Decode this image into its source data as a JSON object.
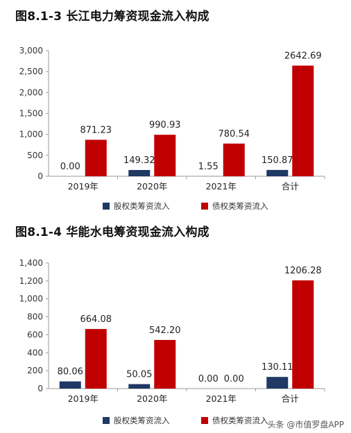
{
  "watermark": "头条 @市值罗盘APP",
  "chart_data": [
    {
      "type": "bar",
      "title": "图8.1-3 长江电力筹资现金流入构成",
      "categories": [
        "2019年",
        "2020年",
        "2021年",
        "合计"
      ],
      "series": [
        {
          "name": "股权类筹资流入",
          "values": [
            0.0,
            149.32,
            1.55,
            150.87
          ],
          "labels": [
            "0.00",
            "149.32",
            "1.55",
            "150.87"
          ],
          "color": "#1f3864"
        },
        {
          "name": "债权类筹资流入",
          "values": [
            871.23,
            990.93,
            780.54,
            2642.69
          ],
          "labels": [
            "871.23",
            "990.93",
            "780.54",
            "2642.69"
          ],
          "color": "#c00000"
        }
      ],
      "ylim": [
        0,
        3000
      ],
      "yticks": [
        0,
        500,
        1000,
        1500,
        2000,
        2500,
        3000
      ],
      "ytick_labels": [
        "0",
        "500",
        "1,000",
        "1,500",
        "2,000",
        "2,500",
        "3,000"
      ],
      "legend": "bottom",
      "grid": false,
      "xlabel": "",
      "ylabel": ""
    },
    {
      "type": "bar",
      "title": "图8.1-4 华能水电筹资现金流入构成",
      "categories": [
        "2019年",
        "2020年",
        "2021年",
        "合计"
      ],
      "series": [
        {
          "name": "股权类筹资流入",
          "values": [
            80.06,
            50.05,
            0.0,
            130.11
          ],
          "labels": [
            "80.06",
            "50.05",
            "0.00",
            "130.11"
          ],
          "color": "#1f3864"
        },
        {
          "name": "债权类筹资流入",
          "values": [
            664.08,
            542.2,
            0.0,
            1206.28
          ],
          "labels": [
            "664.08",
            "542.20",
            "0.00",
            "1206.28"
          ],
          "color": "#c00000"
        }
      ],
      "ylim": [
        0,
        1400
      ],
      "yticks": [
        0,
        200,
        400,
        600,
        800,
        1000,
        1200,
        1400
      ],
      "ytick_labels": [
        "0",
        "200",
        "400",
        "600",
        "800",
        "1,000",
        "1,200",
        "1,400"
      ],
      "legend": "bottom",
      "grid": false,
      "xlabel": "",
      "ylabel": ""
    }
  ]
}
